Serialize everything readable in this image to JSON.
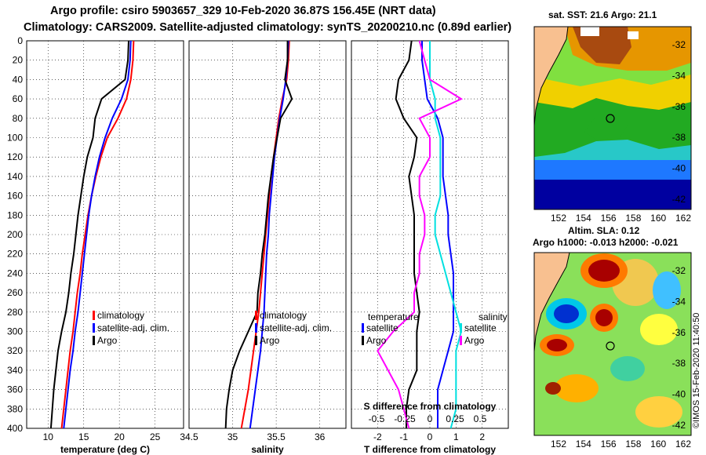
{
  "header": {
    "line1": "Argo profile: csiro 5903657_329 10-Feb-2020 36.87S 156.45E (NRT data)",
    "line2": "Climatology: CARS2009. Satellite-adjusted climatology: synTS_20200210.nc (0.89d earlier)"
  },
  "credit": "©IMOS 15-Feb-2020 11:40:50",
  "colors": {
    "climatology": "#ff0000",
    "satellite": "#0000ff",
    "argo": "#000000",
    "sal_satellite": "#00e0e0",
    "sal_argo": "#ff00ff",
    "land": "#f8c090"
  },
  "chart_data": [
    {
      "id": "temperature",
      "type": "line",
      "xlabel": "temperature (deg C)",
      "xlim": [
        7,
        29
      ],
      "xticks": [
        10,
        15,
        20,
        25
      ],
      "ylim": [
        0,
        400
      ],
      "yticks": [
        0,
        20,
        40,
        60,
        80,
        100,
        120,
        140,
        160,
        180,
        200,
        220,
        240,
        260,
        280,
        300,
        320,
        340,
        360,
        380,
        400
      ],
      "legend": {
        "position": "lower-right",
        "entries": [
          "climatology",
          "satellite-adj. clim.",
          "Argo"
        ]
      },
      "series": [
        {
          "name": "climatology",
          "color": "#ff0000",
          "x": [
            22.0,
            21.9,
            21.6,
            21.0,
            19.8,
            18.3,
            17.4,
            16.7,
            16.1,
            15.6,
            15.2,
            14.8,
            14.5,
            14.1,
            13.8,
            13.5,
            13.1,
            12.8,
            12.5,
            12.2,
            11.9
          ],
          "y": [
            0,
            20,
            40,
            60,
            80,
            100,
            120,
            140,
            160,
            180,
            200,
            220,
            240,
            260,
            280,
            300,
            320,
            340,
            360,
            380,
            400
          ]
        },
        {
          "name": "satellite-adj. clim.",
          "color": "#0000ff",
          "x": [
            21.6,
            21.5,
            21.2,
            20.3,
            19.0,
            18.0,
            17.2,
            16.6,
            16.1,
            15.7,
            15.4,
            15.1,
            14.8,
            14.5,
            14.2,
            13.8,
            13.5,
            13.1,
            12.8,
            12.5,
            12.2
          ],
          "y": [
            0,
            20,
            40,
            60,
            80,
            100,
            120,
            140,
            160,
            180,
            200,
            220,
            240,
            260,
            280,
            300,
            320,
            340,
            360,
            380,
            400
          ]
        },
        {
          "name": "Argo",
          "color": "#000000",
          "x": [
            21.3,
            21.2,
            20.8,
            17.5,
            16.6,
            16.3,
            15.5,
            15.0,
            14.6,
            14.2,
            13.9,
            13.6,
            13.2,
            12.9,
            12.5,
            11.9,
            11.4,
            11.1,
            10.8,
            10.6,
            10.4
          ],
          "y": [
            0,
            20,
            40,
            60,
            80,
            100,
            120,
            140,
            160,
            180,
            200,
            220,
            240,
            260,
            280,
            300,
            320,
            340,
            360,
            380,
            400
          ]
        }
      ]
    },
    {
      "id": "salinity",
      "type": "line",
      "xlabel": "salinity",
      "xlim": [
        34.5,
        36.3
      ],
      "xticks": [
        34.5,
        35,
        35.5,
        36
      ],
      "xticklabels": [
        "34.5",
        "35",
        "35.5",
        "36"
      ],
      "ylim": [
        0,
        400
      ],
      "legend": {
        "position": "lower-right",
        "entries": [
          "climatology",
          "satellite-adj. clim.",
          "Argo"
        ]
      },
      "series": [
        {
          "name": "climatology",
          "color": "#ff0000",
          "x": [
            35.65,
            35.64,
            35.62,
            35.57,
            35.53,
            35.5,
            35.47,
            35.44,
            35.42,
            35.4,
            35.38,
            35.36,
            35.34,
            35.32,
            35.3,
            35.27,
            35.24,
            35.21,
            35.18,
            35.14,
            35.1
          ],
          "y": [
            0,
            20,
            40,
            60,
            80,
            100,
            120,
            140,
            160,
            180,
            200,
            220,
            240,
            260,
            280,
            300,
            320,
            340,
            360,
            380,
            400
          ]
        },
        {
          "name": "satellite-adj. clim.",
          "color": "#0000ff",
          "x": [
            35.64,
            35.63,
            35.61,
            35.58,
            35.54,
            35.51,
            35.48,
            35.46,
            35.44,
            35.42,
            35.41,
            35.39,
            35.38,
            35.37,
            35.36,
            35.34,
            35.32,
            35.29,
            35.26,
            35.23,
            35.2
          ],
          "y": [
            0,
            20,
            40,
            60,
            80,
            100,
            120,
            140,
            160,
            180,
            200,
            220,
            240,
            260,
            280,
            300,
            320,
            340,
            360,
            380,
            400
          ]
        },
        {
          "name": "Argo",
          "color": "#000000",
          "x": [
            35.63,
            35.63,
            35.6,
            35.68,
            35.55,
            35.51,
            35.47,
            35.44,
            35.41,
            35.39,
            35.37,
            35.34,
            35.32,
            35.29,
            35.28,
            35.18,
            35.08,
            35.0,
            34.96,
            34.93,
            34.92
          ],
          "y": [
            0,
            20,
            40,
            60,
            80,
            100,
            120,
            140,
            160,
            180,
            200,
            220,
            240,
            260,
            280,
            300,
            320,
            340,
            360,
            380,
            400
          ]
        }
      ]
    },
    {
      "id": "difference",
      "type": "line",
      "xlabel": "T difference from climatology",
      "xlim": [
        -3,
        3
      ],
      "xticks": [
        -2,
        -1,
        0,
        1,
        2
      ],
      "top_axis_label": "S difference from climatology",
      "top_xticks": [
        "-0.5",
        "-0.25",
        "0",
        "0.25",
        "0.5"
      ],
      "ylim": [
        0,
        400
      ],
      "legend_temperature": {
        "title": "temperature",
        "entries": [
          "satellite",
          "Argo"
        ]
      },
      "legend_salinity": {
        "title": "salinity",
        "entries": [
          "satellite",
          "Argo"
        ]
      },
      "series": [
        {
          "name": "T satellite",
          "color": "#0000ff",
          "x": [
            -0.3,
            -0.3,
            -0.2,
            -0.1,
            0.3,
            0.5,
            0.5,
            0.5,
            0.6,
            0.7,
            0.7,
            0.8,
            0.9,
            0.9,
            0.9,
            0.9,
            0.7,
            0.5,
            0.3,
            0.3,
            0.3
          ],
          "y": [
            0,
            20,
            40,
            60,
            80,
            100,
            120,
            140,
            160,
            180,
            200,
            220,
            240,
            260,
            280,
            300,
            320,
            340,
            360,
            380,
            400
          ]
        },
        {
          "name": "T Argo",
          "color": "#000000",
          "x": [
            -0.7,
            -0.8,
            -1.2,
            -1.3,
            -1.0,
            -0.5,
            -0.6,
            -0.8,
            -0.7,
            -0.6,
            -0.6,
            -0.6,
            -0.6,
            -0.5,
            -0.4,
            -0.5,
            -0.5,
            -0.5,
            -0.8,
            -0.9,
            -0.9
          ],
          "y": [
            0,
            20,
            40,
            60,
            80,
            100,
            120,
            140,
            160,
            180,
            200,
            220,
            240,
            260,
            280,
            300,
            320,
            340,
            360,
            380,
            400
          ]
        },
        {
          "name": "S satellite",
          "color": "#00e0e0",
          "x": [
            0.0,
            0.0,
            0.0,
            0.05,
            0.05,
            0.1,
            0.1,
            0.1,
            0.1,
            0.05,
            0.05,
            0.1,
            0.15,
            0.2,
            0.25,
            0.3,
            0.25,
            0.25,
            0.25,
            0.25,
            0.2
          ],
          "y": [
            0,
            20,
            40,
            60,
            80,
            100,
            120,
            140,
            160,
            180,
            200,
            220,
            240,
            260,
            280,
            300,
            320,
            340,
            360,
            380,
            400
          ]
        },
        {
          "name": "S Argo",
          "color": "#ff00ff",
          "x": [
            -0.1,
            -0.05,
            0.0,
            0.3,
            -0.1,
            0.0,
            0.0,
            -0.1,
            -0.1,
            -0.05,
            -0.05,
            -0.1,
            -0.1,
            -0.15,
            -0.15,
            -0.35,
            -0.5,
            -0.4,
            -0.3,
            -0.25,
            -0.2
          ],
          "y": [
            0,
            20,
            40,
            60,
            80,
            100,
            120,
            140,
            160,
            180,
            200,
            220,
            240,
            260,
            280,
            300,
            320,
            340,
            360,
            380,
            400
          ]
        }
      ]
    },
    {
      "id": "sst-map",
      "type": "heatmap",
      "title": "sat. SST: 21.6 Argo: 21.1",
      "xticks": [
        "152",
        "154",
        "156",
        "158",
        "160",
        "162"
      ],
      "yticks": [
        "-32",
        "-34",
        "-36",
        "-38",
        "-40",
        "-42"
      ],
      "marker": {
        "lon": 156.45,
        "lat": -36.87
      }
    },
    {
      "id": "sla-map",
      "type": "heatmap",
      "title_line1": "Altim. SLA: 0.12",
      "title_line2": "Argo h1000: -0.013 h2000: -0.021",
      "xticks": [
        "152",
        "154",
        "156",
        "158",
        "160",
        "162"
      ],
      "yticks": [
        "-32",
        "-34",
        "-36",
        "-38",
        "-40",
        "-42"
      ],
      "marker": {
        "lon": 156.45,
        "lat": -36.87
      }
    }
  ]
}
